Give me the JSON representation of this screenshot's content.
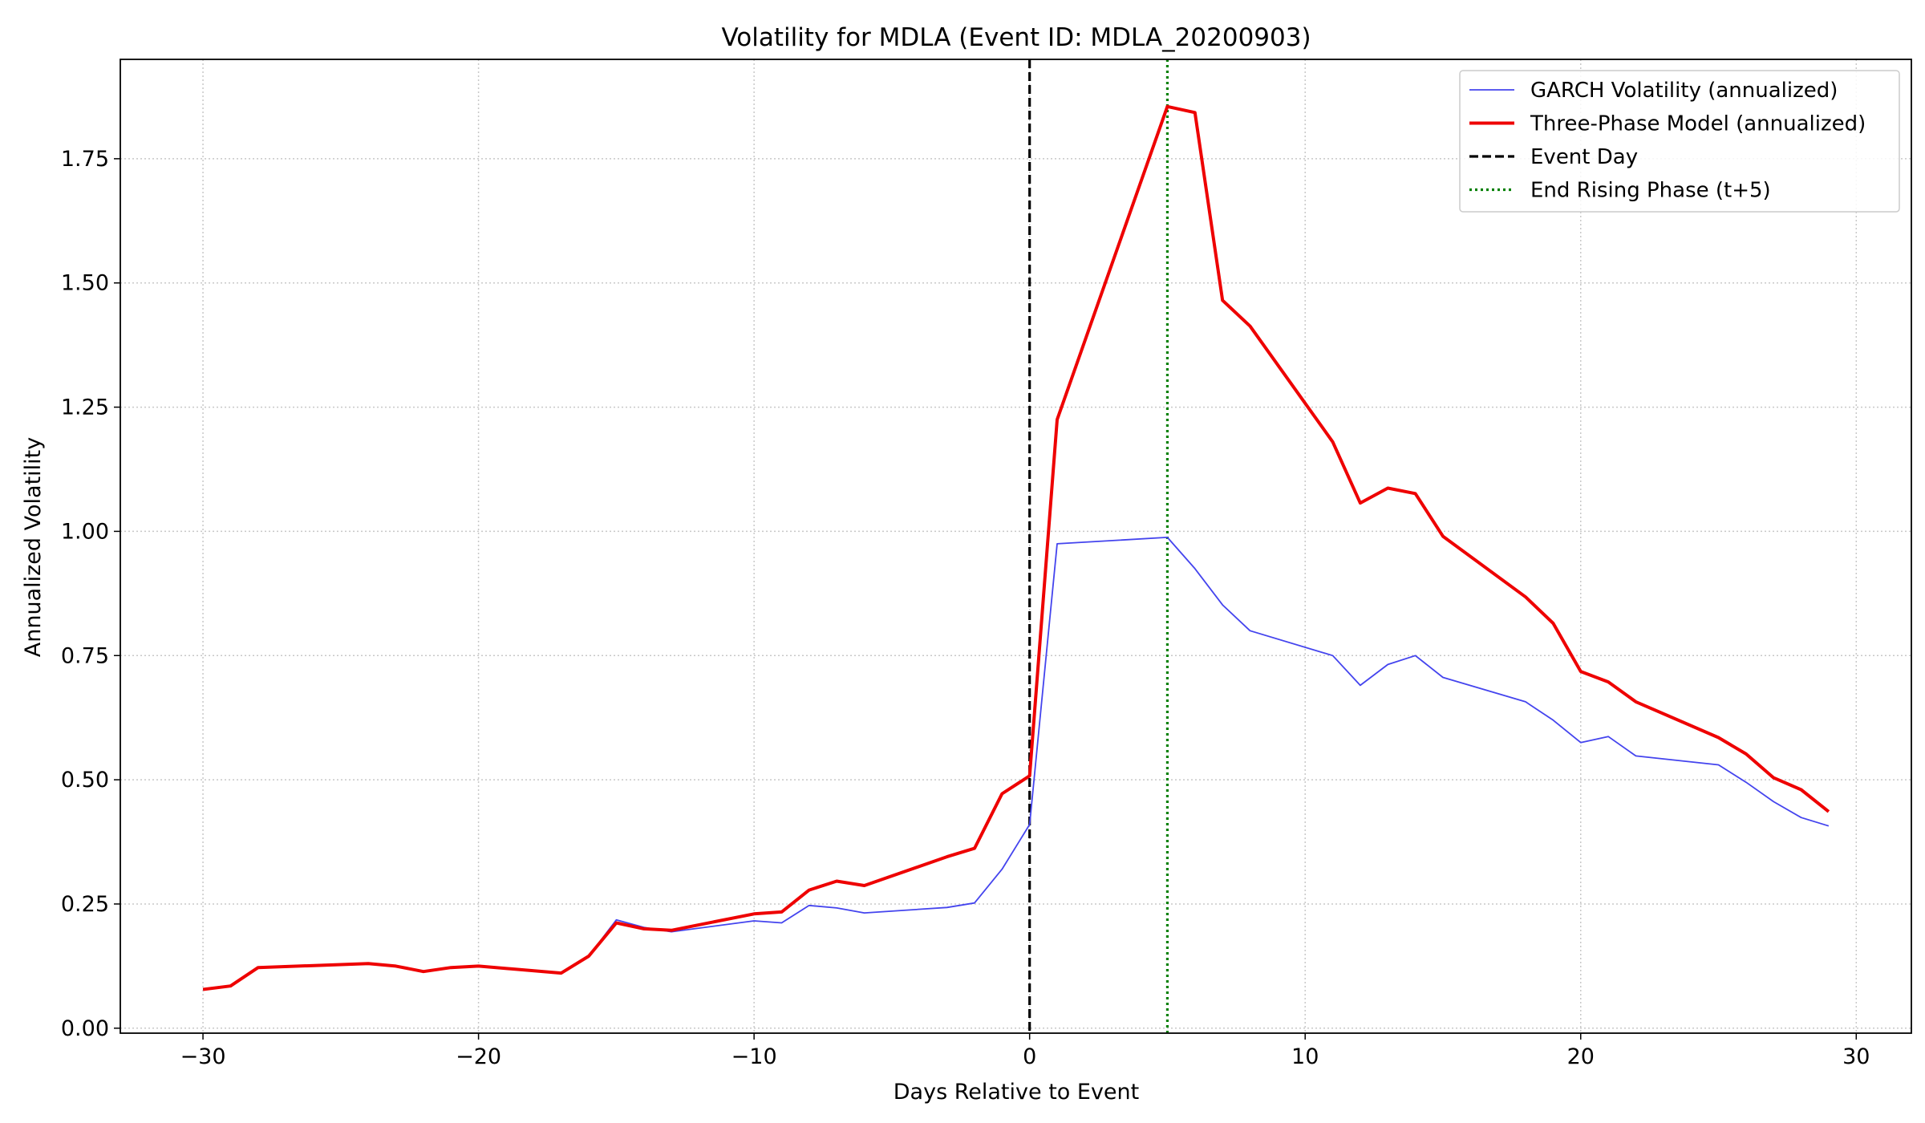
{
  "chart_data": {
    "type": "line",
    "title": "Volatility for MDLA (Event ID: MDLA_20200903)",
    "xlabel": "Days Relative to Event",
    "ylabel": "Annualized Volatility",
    "xlim": [
      -33,
      32
    ],
    "ylim": [
      -0.01,
      1.95
    ],
    "xticks": [
      -30,
      -20,
      -10,
      0,
      10,
      20,
      30
    ],
    "xtick_labels": [
      "−30",
      "−20",
      "−10",
      "0",
      "10",
      "20",
      "30"
    ],
    "yticks": [
      0.0,
      0.25,
      0.5,
      0.75,
      1.0,
      1.25,
      1.5,
      1.75
    ],
    "ytick_labels": [
      "0.00",
      "0.25",
      "0.50",
      "0.75",
      "1.00",
      "1.25",
      "1.50",
      "1.75"
    ],
    "grid": true,
    "legend_position": "top-right",
    "series": [
      {
        "name": "GARCH Volatility (annualized)",
        "color": "#4444ee",
        "style": "solid-thin",
        "x": [
          -30,
          -29,
          -28,
          -24,
          -23,
          -22,
          -21,
          -20,
          -17,
          -16,
          -15,
          -14,
          -13,
          -10,
          -9,
          -8,
          -7,
          -6,
          -3,
          -2,
          -1,
          0,
          1,
          5,
          6,
          7,
          8,
          11,
          12,
          13,
          14,
          15,
          18,
          19,
          20,
          21,
          22,
          25,
          26,
          27,
          28,
          29
        ],
        "y": [
          0.078,
          0.085,
          0.122,
          0.13,
          0.125,
          0.114,
          0.122,
          0.125,
          0.111,
          0.145,
          0.218,
          0.203,
          0.194,
          0.216,
          0.212,
          0.247,
          0.242,
          0.232,
          0.243,
          0.252,
          0.32,
          0.41,
          0.975,
          0.988,
          0.925,
          0.852,
          0.8,
          0.75,
          0.69,
          0.732,
          0.75,
          0.706,
          0.657,
          0.62,
          0.575,
          0.587,
          0.548,
          0.53,
          0.495,
          0.456,
          0.424,
          0.407
        ]
      },
      {
        "name": "Three-Phase Model (annualized)",
        "color": "#ee0000",
        "style": "solid-thick",
        "x": [
          -30,
          -29,
          -28,
          -24,
          -23,
          -22,
          -21,
          -20,
          -17,
          -16,
          -15,
          -14,
          -13,
          -10,
          -9,
          -8,
          -7,
          -6,
          -3,
          -2,
          -1,
          0,
          1,
          5,
          6,
          7,
          8,
          11,
          12,
          13,
          14,
          15,
          18,
          19,
          20,
          21,
          22,
          25,
          26,
          27,
          28,
          29
        ],
        "y": [
          0.078,
          0.085,
          0.122,
          0.13,
          0.125,
          0.114,
          0.122,
          0.125,
          0.111,
          0.145,
          0.212,
          0.2,
          0.197,
          0.23,
          0.234,
          0.278,
          0.296,
          0.287,
          0.345,
          0.362,
          0.472,
          0.508,
          1.225,
          1.855,
          1.843,
          1.465,
          1.413,
          1.18,
          1.057,
          1.087,
          1.076,
          0.99,
          0.868,
          0.815,
          0.718,
          0.697,
          0.657,
          0.585,
          0.552,
          0.504,
          0.48,
          0.436
        ]
      },
      {
        "name": "Event Day",
        "color": "#000000",
        "style": "dashed",
        "vline_x": 0
      },
      {
        "name": "End Rising Phase (t+5)",
        "color": "#008000",
        "style": "dotted",
        "vline_x": 5
      }
    ]
  }
}
